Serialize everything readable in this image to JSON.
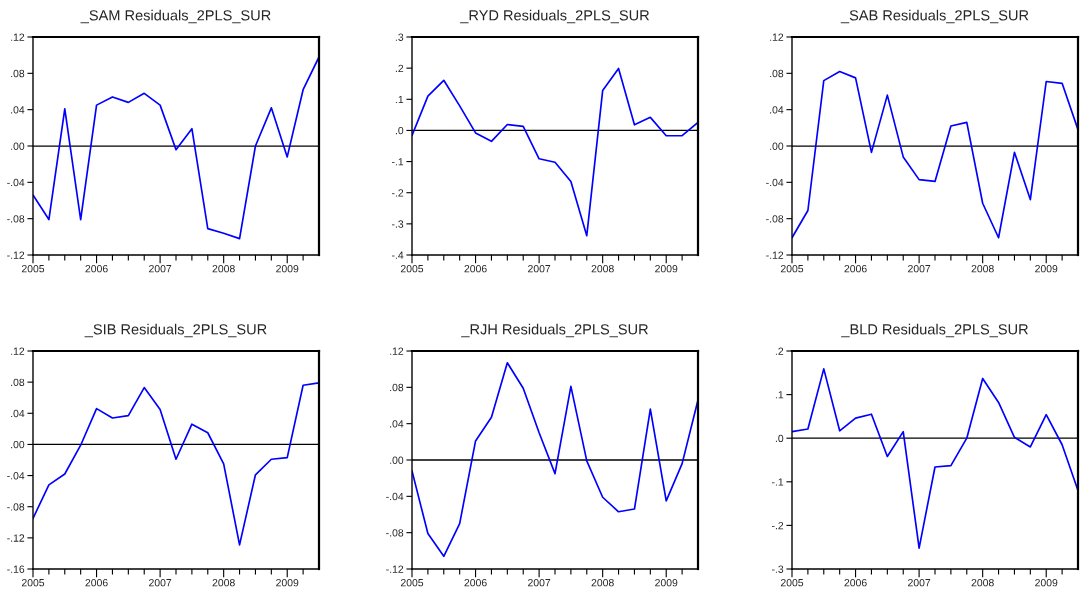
{
  "chart_data": [
    {
      "type": "line",
      "title": "_SAM Residuals_2PLS_SUR",
      "x": [
        2005.0,
        2005.25,
        2005.5,
        2005.75,
        2006.0,
        2006.25,
        2006.5,
        2006.75,
        2007.0,
        2007.25,
        2007.5,
        2007.75,
        2008.0,
        2008.25,
        2008.5,
        2008.75,
        2009.0,
        2009.25,
        2009.5
      ],
      "series": [
        {
          "color": "#0000ff",
          "values": [
            -0.054,
            -0.081,
            0.041,
            -0.081,
            0.045,
            0.054,
            0.048,
            0.058,
            0.045,
            -0.004,
            0.019,
            -0.091,
            -0.096,
            -0.102,
            0.0,
            0.042,
            -0.012,
            0.062,
            0.098
          ]
        }
      ],
      "xlim": [
        2005.0,
        2009.5
      ],
      "xticks": [
        2005,
        {
          "value": 2005.25,
          "label": null
        },
        {
          "value": 2005.5,
          "label": null
        },
        {
          "value": 2005.75,
          "label": null
        },
        2006,
        {
          "value": 2006.25,
          "label": null
        },
        {
          "value": 2006.5,
          "label": null
        },
        {
          "value": 2006.75,
          "label": null
        },
        2007,
        {
          "value": 2007.25,
          "label": null
        },
        {
          "value": 2007.5,
          "label": null
        },
        {
          "value": 2007.75,
          "label": null
        },
        2008,
        {
          "value": 2008.25,
          "label": null
        },
        {
          "value": 2008.5,
          "label": null
        },
        {
          "value": 2008.75,
          "label": null
        },
        2009,
        {
          "value": 2009.25,
          "label": null
        }
      ],
      "ylim": [
        -0.12,
        0.12
      ],
      "yticks": [
        {
          "value": -0.12,
          "label": "-.12"
        },
        {
          "value": -0.08,
          "label": "-.08"
        },
        {
          "value": -0.04,
          "label": "-.04"
        },
        {
          "value": 0.0,
          "label": ".00"
        },
        {
          "value": 0.04,
          "label": ".04"
        },
        {
          "value": 0.08,
          "label": ".08"
        },
        {
          "value": 0.12,
          "label": ".12"
        }
      ],
      "ref_lines": [
        {
          "axis": "y",
          "value": 0.0,
          "color": "#000000"
        }
      ],
      "grid": false
    },
    {
      "type": "line",
      "title": "_RYD Residuals_2PLS_SUR",
      "x": [
        2005.0,
        2005.25,
        2005.5,
        2005.75,
        2006.0,
        2006.25,
        2006.5,
        2006.75,
        2007.0,
        2007.25,
        2007.5,
        2007.75,
        2008.0,
        2008.25,
        2008.5,
        2008.75,
        2009.0,
        2009.25,
        2009.5
      ],
      "series": [
        {
          "color": "#0000ff",
          "values": [
            -0.016,
            0.11,
            0.161,
            0.079,
            -0.008,
            -0.035,
            0.019,
            0.013,
            -0.091,
            -0.102,
            -0.164,
            -0.338,
            0.128,
            0.199,
            0.018,
            0.042,
            -0.017,
            -0.017,
            0.026
          ]
        }
      ],
      "xlim": [
        2005.0,
        2009.5
      ],
      "xticks": [
        2005,
        {
          "value": 2005.25,
          "label": null
        },
        {
          "value": 2005.5,
          "label": null
        },
        {
          "value": 2005.75,
          "label": null
        },
        2006,
        {
          "value": 2006.25,
          "label": null
        },
        {
          "value": 2006.5,
          "label": null
        },
        {
          "value": 2006.75,
          "label": null
        },
        2007,
        {
          "value": 2007.25,
          "label": null
        },
        {
          "value": 2007.5,
          "label": null
        },
        {
          "value": 2007.75,
          "label": null
        },
        2008,
        {
          "value": 2008.25,
          "label": null
        },
        {
          "value": 2008.5,
          "label": null
        },
        {
          "value": 2008.75,
          "label": null
        },
        2009,
        {
          "value": 2009.25,
          "label": null
        }
      ],
      "ylim": [
        -0.4,
        0.3
      ],
      "yticks": [
        {
          "value": -0.4,
          "label": "-.4"
        },
        {
          "value": -0.3,
          "label": "-.3"
        },
        {
          "value": -0.2,
          "label": "-.2"
        },
        {
          "value": -0.1,
          "label": "-.1"
        },
        {
          "value": 0.0,
          "label": ".0"
        },
        {
          "value": 0.1,
          "label": ".1"
        },
        {
          "value": 0.2,
          "label": ".2"
        },
        {
          "value": 0.3,
          "label": ".3"
        }
      ],
      "ref_lines": [
        {
          "axis": "y",
          "value": 0.0,
          "color": "#000000"
        }
      ],
      "grid": false
    },
    {
      "type": "line",
      "title": "_SAB Residuals_2PLS_SUR",
      "x": [
        2005.0,
        2005.25,
        2005.5,
        2005.75,
        2006.0,
        2006.25,
        2006.5,
        2006.75,
        2007.0,
        2007.25,
        2007.5,
        2007.75,
        2008.0,
        2008.25,
        2008.5,
        2008.75,
        2009.0,
        2009.25,
        2009.5
      ],
      "series": [
        {
          "color": "#0000ff",
          "values": [
            -0.101,
            -0.071,
            0.072,
            0.082,
            0.075,
            -0.007,
            0.056,
            -0.012,
            -0.037,
            -0.039,
            0.022,
            0.026,
            -0.063,
            -0.101,
            -0.007,
            -0.059,
            0.071,
            0.069,
            0.018
          ]
        }
      ],
      "xlim": [
        2005.0,
        2009.5
      ],
      "xticks": [
        2005,
        {
          "value": 2005.25,
          "label": null
        },
        {
          "value": 2005.5,
          "label": null
        },
        {
          "value": 2005.75,
          "label": null
        },
        2006,
        {
          "value": 2006.25,
          "label": null
        },
        {
          "value": 2006.5,
          "label": null
        },
        {
          "value": 2006.75,
          "label": null
        },
        2007,
        {
          "value": 2007.25,
          "label": null
        },
        {
          "value": 2007.5,
          "label": null
        },
        {
          "value": 2007.75,
          "label": null
        },
        2008,
        {
          "value": 2008.25,
          "label": null
        },
        {
          "value": 2008.5,
          "label": null
        },
        {
          "value": 2008.75,
          "label": null
        },
        2009,
        {
          "value": 2009.25,
          "label": null
        }
      ],
      "ylim": [
        -0.12,
        0.12
      ],
      "yticks": [
        {
          "value": -0.12,
          "label": "-.12"
        },
        {
          "value": -0.08,
          "label": "-.08"
        },
        {
          "value": -0.04,
          "label": "-.04"
        },
        {
          "value": 0.0,
          "label": ".00"
        },
        {
          "value": 0.04,
          "label": ".04"
        },
        {
          "value": 0.08,
          "label": ".08"
        },
        {
          "value": 0.12,
          "label": ".12"
        }
      ],
      "ref_lines": [
        {
          "axis": "y",
          "value": 0.0,
          "color": "#000000"
        }
      ],
      "grid": false
    },
    {
      "type": "line",
      "title": "_SIB Residuals_2PLS_SUR",
      "x": [
        2005.0,
        2005.25,
        2005.5,
        2005.75,
        2006.0,
        2006.25,
        2006.5,
        2006.75,
        2007.0,
        2007.25,
        2007.5,
        2007.75,
        2008.0,
        2008.25,
        2008.5,
        2008.75,
        2009.0,
        2009.25,
        2009.5
      ],
      "series": [
        {
          "color": "#0000ff",
          "values": [
            -0.095,
            -0.052,
            -0.038,
            -0.001,
            0.046,
            0.034,
            0.037,
            0.073,
            0.045,
            -0.019,
            0.026,
            0.015,
            -0.025,
            -0.129,
            -0.039,
            -0.019,
            -0.017,
            0.076,
            0.079
          ]
        }
      ],
      "xlim": [
        2005.0,
        2009.5
      ],
      "xticks": [
        2005,
        {
          "value": 2005.25,
          "label": null
        },
        {
          "value": 2005.5,
          "label": null
        },
        {
          "value": 2005.75,
          "label": null
        },
        2006,
        {
          "value": 2006.25,
          "label": null
        },
        {
          "value": 2006.5,
          "label": null
        },
        {
          "value": 2006.75,
          "label": null
        },
        2007,
        {
          "value": 2007.25,
          "label": null
        },
        {
          "value": 2007.5,
          "label": null
        },
        {
          "value": 2007.75,
          "label": null
        },
        2008,
        {
          "value": 2008.25,
          "label": null
        },
        {
          "value": 2008.5,
          "label": null
        },
        {
          "value": 2008.75,
          "label": null
        },
        2009,
        {
          "value": 2009.25,
          "label": null
        }
      ],
      "ylim": [
        -0.16,
        0.12
      ],
      "yticks": [
        {
          "value": -0.16,
          "label": "-.16"
        },
        {
          "value": -0.12,
          "label": "-.12"
        },
        {
          "value": -0.08,
          "label": "-.08"
        },
        {
          "value": -0.04,
          "label": "-.04"
        },
        {
          "value": 0.0,
          "label": ".00"
        },
        {
          "value": 0.04,
          "label": ".04"
        },
        {
          "value": 0.08,
          "label": ".08"
        },
        {
          "value": 0.12,
          "label": ".12"
        }
      ],
      "ref_lines": [
        {
          "axis": "y",
          "value": 0.0,
          "color": "#000000"
        }
      ],
      "grid": false
    },
    {
      "type": "line",
      "title": "_RJH Residuals_2PLS_SUR",
      "x": [
        2005.0,
        2005.25,
        2005.5,
        2005.75,
        2006.0,
        2006.25,
        2006.5,
        2006.75,
        2007.0,
        2007.25,
        2007.5,
        2007.75,
        2008.0,
        2008.25,
        2008.5,
        2008.75,
        2009.0,
        2009.25,
        2009.5
      ],
      "series": [
        {
          "color": "#0000ff",
          "values": [
            -0.012,
            -0.081,
            -0.106,
            -0.07,
            0.021,
            0.047,
            0.107,
            0.079,
            0.03,
            -0.015,
            0.081,
            -0.001,
            -0.041,
            -0.057,
            -0.054,
            0.056,
            -0.045,
            -0.004,
            0.066
          ]
        }
      ],
      "xlim": [
        2005.0,
        2009.5
      ],
      "xticks": [
        2005,
        {
          "value": 2005.25,
          "label": null
        },
        {
          "value": 2005.5,
          "label": null
        },
        {
          "value": 2005.75,
          "label": null
        },
        2006,
        {
          "value": 2006.25,
          "label": null
        },
        {
          "value": 2006.5,
          "label": null
        },
        {
          "value": 2006.75,
          "label": null
        },
        2007,
        {
          "value": 2007.25,
          "label": null
        },
        {
          "value": 2007.5,
          "label": null
        },
        {
          "value": 2007.75,
          "label": null
        },
        2008,
        {
          "value": 2008.25,
          "label": null
        },
        {
          "value": 2008.5,
          "label": null
        },
        {
          "value": 2008.75,
          "label": null
        },
        2009,
        {
          "value": 2009.25,
          "label": null
        }
      ],
      "ylim": [
        -0.12,
        0.12
      ],
      "yticks": [
        {
          "value": -0.12,
          "label": "-.12"
        },
        {
          "value": -0.08,
          "label": "-.08"
        },
        {
          "value": -0.04,
          "label": "-.04"
        },
        {
          "value": 0.0,
          "label": ".00"
        },
        {
          "value": 0.04,
          "label": ".04"
        },
        {
          "value": 0.08,
          "label": ".08"
        },
        {
          "value": 0.12,
          "label": ".12"
        }
      ],
      "ref_lines": [
        {
          "axis": "y",
          "value": 0.0,
          "color": "#000000"
        }
      ],
      "grid": false
    },
    {
      "type": "line",
      "title": "_BLD Residuals_2PLS_SUR",
      "x": [
        2005.0,
        2005.25,
        2005.5,
        2005.75,
        2006.0,
        2006.25,
        2006.5,
        2006.75,
        2007.0,
        2007.25,
        2007.5,
        2007.75,
        2008.0,
        2008.25,
        2008.5,
        2008.75,
        2009.0,
        2009.25,
        2009.5
      ],
      "series": [
        {
          "color": "#0000ff",
          "values": [
            0.015,
            0.021,
            0.159,
            0.017,
            0.046,
            0.055,
            -0.042,
            0.015,
            -0.252,
            -0.066,
            -0.063,
            0.0,
            0.137,
            0.082,
            0.002,
            -0.02,
            0.054,
            -0.015,
            -0.12
          ]
        }
      ],
      "xlim": [
        2005.0,
        2009.5
      ],
      "xticks": [
        2005,
        {
          "value": 2005.25,
          "label": null
        },
        {
          "value": 2005.5,
          "label": null
        },
        {
          "value": 2005.75,
          "label": null
        },
        2006,
        {
          "value": 2006.25,
          "label": null
        },
        {
          "value": 2006.5,
          "label": null
        },
        {
          "value": 2006.75,
          "label": null
        },
        2007,
        {
          "value": 2007.25,
          "label": null
        },
        {
          "value": 2007.5,
          "label": null
        },
        {
          "value": 2007.75,
          "label": null
        },
        2008,
        {
          "value": 2008.25,
          "label": null
        },
        {
          "value": 2008.5,
          "label": null
        },
        {
          "value": 2008.75,
          "label": null
        },
        2009,
        {
          "value": 2009.25,
          "label": null
        }
      ],
      "ylim": [
        -0.3,
        0.2
      ],
      "yticks": [
        {
          "value": -0.3,
          "label": "-.3"
        },
        {
          "value": -0.2,
          "label": "-.2"
        },
        {
          "value": -0.1,
          "label": "-.1"
        },
        {
          "value": 0.0,
          "label": ".0"
        },
        {
          "value": 0.1,
          "label": ".1"
        },
        {
          "value": 0.2,
          "label": ".2"
        }
      ],
      "ref_lines": [
        {
          "axis": "y",
          "value": 0.0,
          "color": "#000000"
        }
      ],
      "grid": false
    }
  ]
}
